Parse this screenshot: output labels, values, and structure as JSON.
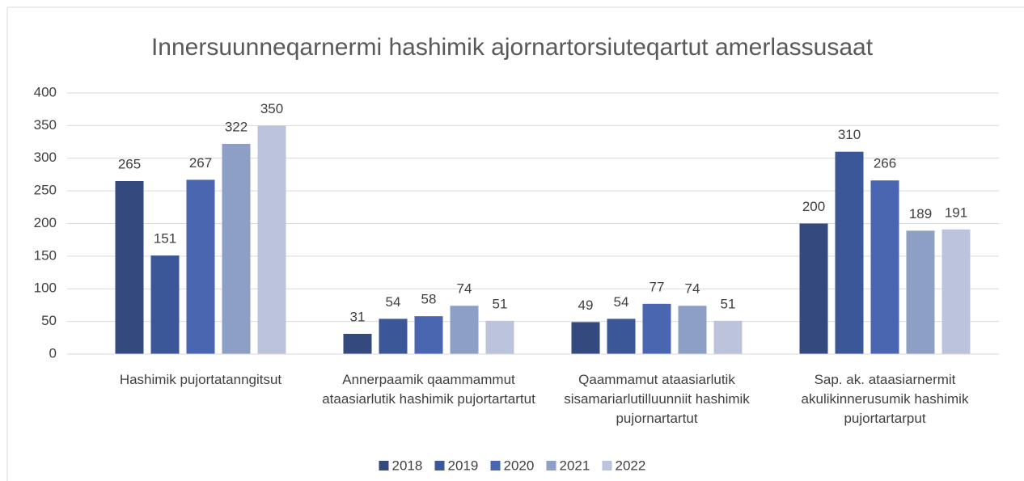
{
  "chart_data": {
    "type": "bar",
    "title": "Innersuunneqarnermi hashimik ajornartorsiuteqartut amerlassusaat",
    "categories": [
      "Hashimik pujortatanngitsut",
      "Annerpaamik qaammammut ataasiarlutik hashimik pujortartartut",
      "Qaammamut ataasiarlutik sisamariarlutilluunniit hashimik pujornartartut",
      "Sap. ak. ataasiarnermit akulikinnerusumik hashimik pujortartarput"
    ],
    "series": [
      {
        "name": "2018",
        "color": "#344a7e",
        "values": [
          265,
          31,
          49,
          200
        ]
      },
      {
        "name": "2019",
        "color": "#3b5797",
        "values": [
          151,
          54,
          54,
          310
        ]
      },
      {
        "name": "2020",
        "color": "#4a66b0",
        "values": [
          267,
          58,
          77,
          266
        ]
      },
      {
        "name": "2021",
        "color": "#8e9fc6",
        "values": [
          322,
          74,
          74,
          189
        ]
      },
      {
        "name": "2022",
        "color": "#bcc4dc",
        "values": [
          350,
          51,
          51,
          191
        ]
      }
    ],
    "ylim": [
      0,
      400
    ],
    "yticks": [
      0,
      50,
      100,
      150,
      200,
      250,
      300,
      350,
      400
    ],
    "grid": true,
    "legend": "bottom"
  }
}
